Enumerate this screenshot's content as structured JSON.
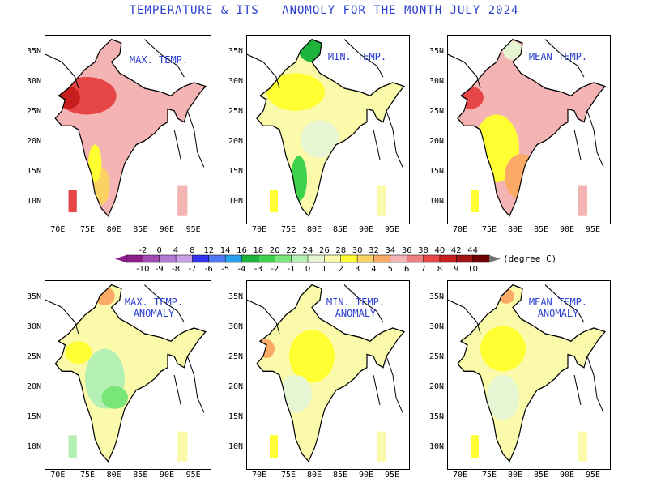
{
  "title": "TEMPERATURE & ITS   ANOMOLY FOR THE MONTH JULY 2024",
  "y_ticks": [
    "35N",
    "30N",
    "25N",
    "20N",
    "15N",
    "10N"
  ],
  "x_ticks": [
    "70E",
    "75E",
    "80E",
    "85E",
    "90E",
    "95E"
  ],
  "panels": [
    {
      "label_line1": "MAX. TEMP.",
      "label_line2": ""
    },
    {
      "label_line1": "MIN. TEMP.",
      "label_line2": ""
    },
    {
      "label_line1": "MEAN TEMP.",
      "label_line2": ""
    },
    {
      "label_line1": "MAX. TEMP.",
      "label_line2": "ANOMALY"
    },
    {
      "label_line1": "MIN. TEMP.",
      "label_line2": "ANOMALY"
    },
    {
      "label_line1": "MEAN TEMP.",
      "label_line2": "ANOMALY"
    }
  ],
  "legend": {
    "temperature_labels": [
      "-2",
      "0",
      "4",
      "8",
      "12",
      "14",
      "16",
      "18",
      "20",
      "22",
      "24",
      "26",
      "28",
      "30",
      "32",
      "34",
      "36",
      "38",
      "40",
      "42",
      "44"
    ],
    "anomaly_labels": [
      "-10",
      "-9",
      "-8",
      "-7",
      "-6",
      "-5",
      "-4",
      "-3",
      "-2",
      "-1",
      "0",
      "1",
      "2",
      "3",
      "4",
      "5",
      "6",
      "7",
      "8",
      "9",
      "10"
    ],
    "unit": "(degree C)",
    "colors": [
      "#8c1e8c",
      "#a04ab4",
      "#b07ad2",
      "#c8a0e6",
      "#3232f0",
      "#5078f5",
      "#28a0f0",
      "#1eb43c",
      "#3cd24b",
      "#78e678",
      "#b4f0b4",
      "#e6f5d2",
      "#fafaaa",
      "#ffff32",
      "#fad264",
      "#faaa64",
      "#f5b4b4",
      "#f08080",
      "#e64646",
      "#c81e1e",
      "#a01414",
      "#6e0000"
    ]
  }
}
